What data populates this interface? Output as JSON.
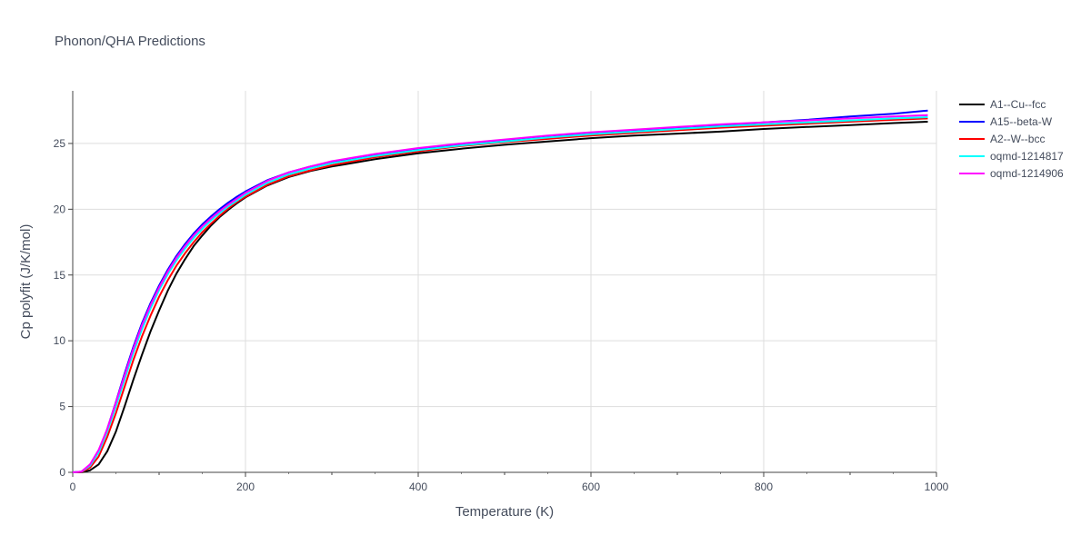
{
  "chart_data": {
    "type": "line",
    "title": "Phonon/QHA Predictions",
    "xlabel": "Temperature (K)",
    "ylabel": "Cp polyfit (J/K/mol)",
    "xlim": [
      0,
      1000
    ],
    "ylim": [
      0,
      29
    ],
    "xticks": [
      0,
      200,
      400,
      600,
      800,
      1000
    ],
    "yticks": [
      0,
      5,
      10,
      15,
      20,
      25
    ],
    "grid": true,
    "legend_position": "right",
    "x": [
      0,
      10,
      20,
      30,
      40,
      50,
      60,
      70,
      80,
      90,
      100,
      110,
      120,
      130,
      140,
      150,
      160,
      170,
      180,
      190,
      200,
      225,
      250,
      275,
      300,
      350,
      400,
      450,
      500,
      550,
      600,
      650,
      700,
      750,
      800,
      850,
      900,
      950,
      990
    ],
    "series": [
      {
        "name": "A1--Cu--fcc",
        "color": "#000000",
        "values": [
          0,
          0.0,
          0.15,
          0.6,
          1.6,
          3.1,
          5.0,
          7.0,
          8.9,
          10.7,
          12.3,
          13.8,
          15.1,
          16.2,
          17.2,
          18.0,
          18.75,
          19.4,
          19.95,
          20.45,
          20.9,
          21.8,
          22.45,
          22.9,
          23.25,
          23.8,
          24.25,
          24.6,
          24.9,
          25.15,
          25.4,
          25.6,
          25.75,
          25.9,
          26.1,
          26.25,
          26.4,
          26.55,
          26.65
        ]
      },
      {
        "name": "A15--beta-W",
        "color": "#0000ff",
        "values": [
          0,
          0.05,
          0.55,
          1.6,
          3.3,
          5.35,
          7.5,
          9.5,
          11.3,
          12.85,
          14.2,
          15.4,
          16.45,
          17.35,
          18.15,
          18.85,
          19.45,
          20.0,
          20.5,
          20.95,
          21.35,
          22.2,
          22.8,
          23.25,
          23.6,
          24.15,
          24.6,
          24.95,
          25.25,
          25.5,
          25.75,
          25.95,
          26.15,
          26.35,
          26.6,
          26.8,
          27.05,
          27.25,
          27.5
        ]
      },
      {
        "name": "A2--W--bcc",
        "color": "#ff0000",
        "values": [
          0,
          0.02,
          0.35,
          1.2,
          2.7,
          4.5,
          6.5,
          8.5,
          10.3,
          11.9,
          13.35,
          14.6,
          15.7,
          16.65,
          17.5,
          18.25,
          18.9,
          19.5,
          20.05,
          20.55,
          20.95,
          21.85,
          22.5,
          22.95,
          23.35,
          23.95,
          24.4,
          24.8,
          25.1,
          25.35,
          25.6,
          25.8,
          26.0,
          26.2,
          26.35,
          26.5,
          26.65,
          26.8,
          26.9
        ]
      },
      {
        "name": "oqmd-1214817",
        "color": "#00ffff",
        "values": [
          0,
          0.04,
          0.5,
          1.5,
          3.1,
          5.0,
          7.05,
          9.05,
          10.85,
          12.45,
          13.85,
          15.05,
          16.1,
          17.0,
          17.8,
          18.5,
          19.15,
          19.7,
          20.2,
          20.65,
          21.1,
          22.0,
          22.65,
          23.1,
          23.5,
          24.05,
          24.5,
          24.85,
          25.15,
          25.45,
          25.7,
          25.9,
          26.1,
          26.3,
          26.45,
          26.6,
          26.75,
          26.9,
          27.0
        ]
      },
      {
        "name": "oqmd-1214906",
        "color": "#ff00ff",
        "values": [
          0,
          0.05,
          0.6,
          1.7,
          3.3,
          5.3,
          7.35,
          9.35,
          11.15,
          12.7,
          14.05,
          15.25,
          16.3,
          17.2,
          18.0,
          18.7,
          19.3,
          19.85,
          20.35,
          20.8,
          21.25,
          22.15,
          22.8,
          23.25,
          23.65,
          24.2,
          24.65,
          25.0,
          25.3,
          25.6,
          25.85,
          26.05,
          26.25,
          26.45,
          26.6,
          26.75,
          26.9,
          27.05,
          27.15
        ]
      }
    ]
  }
}
